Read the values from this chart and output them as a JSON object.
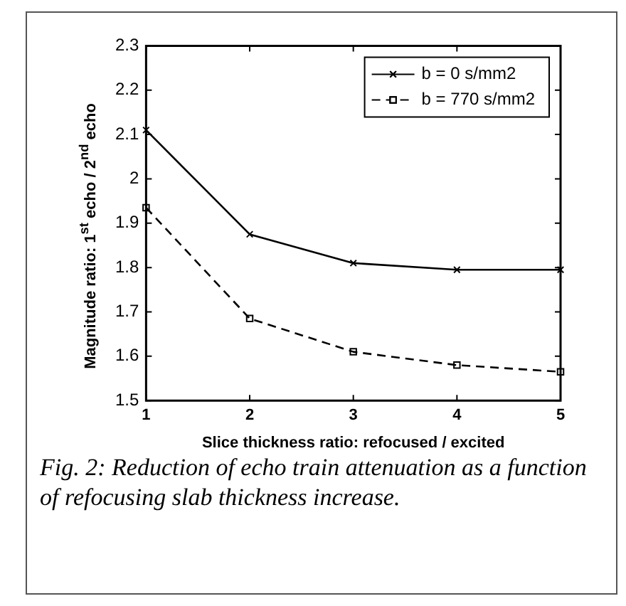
{
  "chart_data": {
    "type": "line",
    "xlabel": "Slice thickness ratio: refocused / excited",
    "ylabel": "Magnitude ratio: 1$^{st}$ echo / 2$^{nd}$ echo",
    "x": [
      1,
      2,
      3,
      4,
      5
    ],
    "series": [
      {
        "name": "b = 0 s/mm2",
        "color": "#000000",
        "marker": "cross",
        "line_style": "solid",
        "values": [
          2.11,
          1.875,
          1.81,
          1.795,
          1.795
        ]
      },
      {
        "name": "b = 770 s/mm2",
        "color": "#000000",
        "marker": "square",
        "line_style": "dashed",
        "values": [
          1.935,
          1.685,
          1.61,
          1.58,
          1.565
        ]
      }
    ],
    "xlim": [
      1,
      5
    ],
    "xticks": [
      1,
      2,
      3,
      4,
      5
    ],
    "ylim": [
      1.5,
      2.3
    ],
    "yticks": [
      1.5,
      1.6,
      1.7,
      1.8,
      1.9,
      2,
      2.1,
      2.2,
      2.3
    ],
    "grid": false,
    "legend": "top right",
    "annotations": [
      "Fig. 2: Reduction of echo train attenuation as a function of refocusing slab thickness increase."
    ]
  }
}
